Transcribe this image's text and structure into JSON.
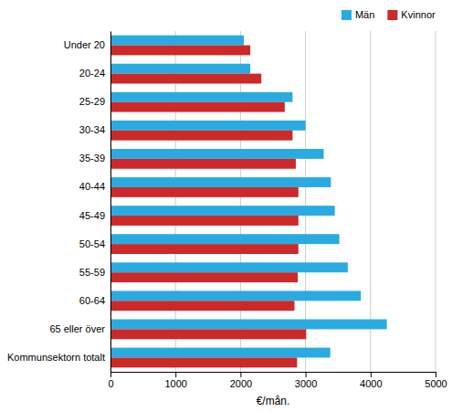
{
  "chart_data": {
    "type": "bar",
    "orientation": "horizontal",
    "categories": [
      "Under 20",
      "20-24",
      "25-29",
      "30-34",
      "35-39",
      "40-44",
      "45-49",
      "50-54",
      "55-59",
      "60-64",
      "65 eller över",
      "Kommunsektorn totalt"
    ],
    "series": [
      {
        "name": "Män",
        "color": "#29ABE2",
        "values": [
          2050,
          2150,
          2800,
          3000,
          3280,
          3390,
          3450,
          3520,
          3650,
          3850,
          4250,
          3380
        ]
      },
      {
        "name": "Kvinnor",
        "color": "#CC2929",
        "values": [
          2150,
          2320,
          2680,
          2800,
          2850,
          2890,
          2890,
          2890,
          2880,
          2830,
          3010,
          2870
        ]
      }
    ],
    "xlabel": "€/mån.",
    "xlim": [
      0,
      5000
    ],
    "xticks": [
      0,
      1000,
      2000,
      3000,
      4000,
      5000
    ],
    "grid": true,
    "legend": "upper right"
  }
}
